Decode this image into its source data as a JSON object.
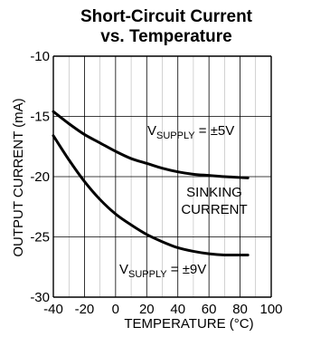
{
  "chart_data": {
    "type": "line",
    "title_line1": "Short-Circuit Current",
    "title_line2": "vs. Temperature",
    "xlabel": "TEMPERATURE (°C)",
    "ylabel": "OUTPUT CURRENT (mA)",
    "xlim": [
      -40,
      100
    ],
    "ylim": [
      -30,
      -10
    ],
    "x_ticks": [
      "-40",
      "-20",
      "0",
      "20",
      "40",
      "60",
      "80",
      "100"
    ],
    "y_ticks": [
      "-10",
      "-15",
      "-20",
      "-25",
      "-30"
    ],
    "grid": true,
    "series": [
      {
        "label_main": "V",
        "label_sub": "SUPPLY",
        "label_rest": " = ±5V",
        "x": [
          -40,
          -30,
          -20,
          -10,
          0,
          10,
          20,
          30,
          40,
          50,
          60,
          70,
          85
        ],
        "y": [
          -14.6,
          -15.6,
          -16.5,
          -17.2,
          -17.9,
          -18.5,
          -18.9,
          -19.3,
          -19.6,
          -19.8,
          -19.9,
          -20.0,
          -20.1
        ]
      },
      {
        "label_main": "V",
        "label_sub": "SUPPLY",
        "label_rest": " = ±9V",
        "x": [
          -40,
          -30,
          -20,
          -10,
          0,
          10,
          20,
          30,
          40,
          50,
          60,
          70,
          85
        ],
        "y": [
          -16.6,
          -18.6,
          -20.4,
          -21.9,
          -23.1,
          -24.0,
          -24.8,
          -25.4,
          -25.9,
          -26.2,
          -26.4,
          -26.5,
          -26.5
        ]
      }
    ],
    "annotation_line1": "SINKING",
    "annotation_line2": "CURRENT",
    "colors": {
      "line": "#000000",
      "grid": "#000000",
      "background": "#ffffff"
    }
  }
}
